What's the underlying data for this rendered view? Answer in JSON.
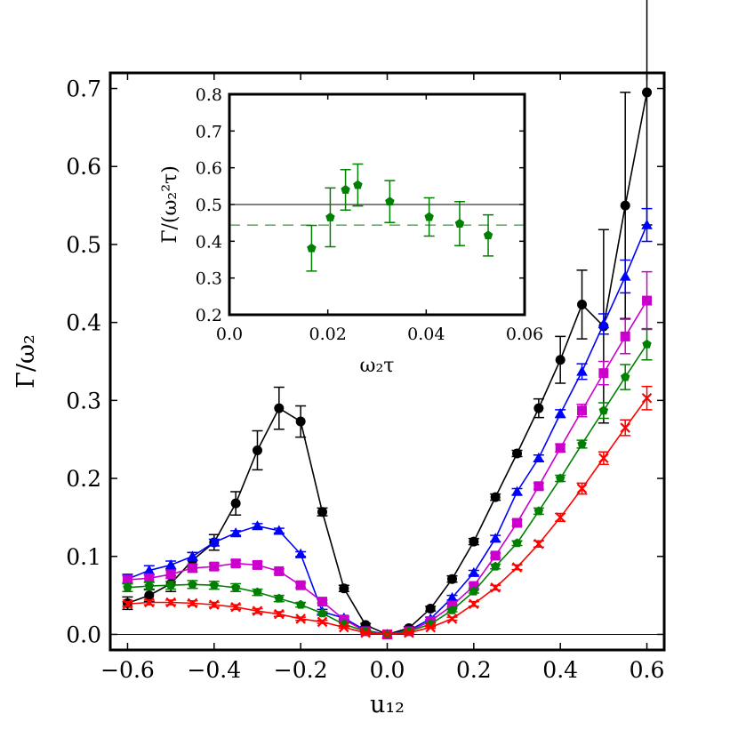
{
  "chart_data": [
    {
      "type": "line",
      "xlabel": "u₁₂",
      "ylabel": "Γ/ω₂",
      "xlim": [
        -0.64,
        0.64
      ],
      "ylim": [
        -0.02,
        0.72
      ],
      "xticks": [
        -0.6,
        -0.4,
        -0.2,
        0.0,
        0.2,
        0.4,
        0.6
      ],
      "xtick_labels": [
        "−0.6",
        "−0.4",
        "−0.2",
        "0.0",
        "0.2",
        "0.4",
        "0.6"
      ],
      "yticks": [
        0.0,
        0.1,
        0.2,
        0.3,
        0.4,
        0.5,
        0.6,
        0.7
      ],
      "ytick_labels": [
        "0.0",
        "0.1",
        "0.2",
        "0.3",
        "0.4",
        "0.5",
        "0.6",
        "0.7"
      ],
      "reference_lines": [
        {
          "y": 0.0,
          "color": "#000000",
          "style": "solid"
        }
      ],
      "x": [
        -0.6,
        -0.55,
        -0.5,
        -0.45,
        -0.4,
        -0.35,
        -0.3,
        -0.25,
        -0.2,
        -0.15,
        -0.1,
        -0.05,
        0.0,
        0.05,
        0.1,
        0.15,
        0.2,
        0.25,
        0.3,
        0.35,
        0.4,
        0.45,
        0.5,
        0.55,
        0.6
      ],
      "series": [
        {
          "color": "#000000",
          "marker": "circle",
          "values": [
            0.04,
            0.05,
            0.065,
            0.095,
            0.118,
            0.168,
            0.236,
            0.29,
            0.273,
            0.157,
            0.059,
            0.012,
            0.0,
            0.008,
            0.033,
            0.071,
            0.119,
            0.176,
            0.232,
            0.29,
            0.352,
            0.423,
            0.395,
            0.55,
            0.695
          ],
          "errors": [
            0.008,
            0.008,
            0.01,
            0.01,
            0.01,
            0.015,
            0.025,
            0.027,
            0.02,
            0.005,
            0.004,
            0.002,
            0.0,
            0.002,
            0.003,
            0.004,
            0.004,
            0.004,
            0.004,
            0.012,
            0.03,
            0.044,
            0.124,
            0.145,
            0.17
          ]
        },
        {
          "color": "#0000ff",
          "marker": "triangle",
          "values": [
            0.071,
            0.082,
            0.089,
            0.1,
            0.118,
            0.13,
            0.139,
            0.133,
            0.103,
            0.029,
            0.021,
            0.005,
            0.0,
            0.005,
            0.02,
            0.047,
            0.079,
            0.123,
            0.183,
            0.226,
            0.283,
            0.337,
            0.398,
            0.459,
            0.525
          ],
          "errors": [
            0.006,
            0.006,
            0.005,
            0.005,
            0.004,
            0.003,
            0.003,
            0.003,
            0.003,
            0.003,
            0.002,
            0.001,
            0.0,
            0.001,
            0.002,
            0.003,
            0.003,
            0.004,
            0.004,
            0.004,
            0.005,
            0.01,
            0.013,
            0.021,
            0.021
          ]
        },
        {
          "color": "#cc00cc",
          "marker": "square",
          "values": [
            0.07,
            0.072,
            0.077,
            0.085,
            0.087,
            0.091,
            0.089,
            0.081,
            0.063,
            0.042,
            0.019,
            0.004,
            0.0,
            0.004,
            0.017,
            0.037,
            0.062,
            0.101,
            0.143,
            0.19,
            0.239,
            0.287,
            0.335,
            0.382,
            0.428
          ],
          "errors": [
            0.005,
            0.005,
            0.005,
            0.005,
            0.004,
            0.004,
            0.004,
            0.003,
            0.003,
            0.002,
            0.002,
            0.001,
            0.0,
            0.001,
            0.002,
            0.002,
            0.003,
            0.003,
            0.004,
            0.004,
            0.005,
            0.008,
            0.015,
            0.022,
            0.037
          ]
        },
        {
          "color": "#008000",
          "marker": "pentagon",
          "values": [
            0.06,
            0.062,
            0.063,
            0.064,
            0.063,
            0.06,
            0.054,
            0.046,
            0.038,
            0.027,
            0.013,
            0.004,
            0.0,
            0.004,
            0.013,
            0.031,
            0.055,
            0.087,
            0.117,
            0.158,
            0.2,
            0.244,
            0.287,
            0.33,
            0.372
          ],
          "errors": [
            0.005,
            0.005,
            0.005,
            0.005,
            0.005,
            0.005,
            0.004,
            0.004,
            0.003,
            0.002,
            0.002,
            0.001,
            0.0,
            0.001,
            0.002,
            0.002,
            0.002,
            0.003,
            0.003,
            0.004,
            0.004,
            0.005,
            0.01,
            0.016,
            0.02
          ]
        },
        {
          "color": "#ff0000",
          "marker": "x",
          "values": [
            0.039,
            0.041,
            0.041,
            0.04,
            0.038,
            0.035,
            0.03,
            0.026,
            0.02,
            0.016,
            0.009,
            0.002,
            0.0,
            0.002,
            0.009,
            0.02,
            0.039,
            0.06,
            0.086,
            0.116,
            0.15,
            0.187,
            0.226,
            0.265,
            0.303
          ],
          "errors": [
            0.003,
            0.003,
            0.003,
            0.003,
            0.003,
            0.003,
            0.003,
            0.003,
            0.002,
            0.002,
            0.001,
            0.001,
            0.0,
            0.001,
            0.001,
            0.002,
            0.003,
            0.003,
            0.003,
            0.004,
            0.005,
            0.007,
            0.008,
            0.01,
            0.015
          ]
        }
      ]
    },
    {
      "type": "scatter",
      "xlabel": "ω₂τ",
      "ylabel": "Γ/(ω₂²τ)",
      "xlim": [
        0.0,
        0.06
      ],
      "ylim": [
        0.2,
        0.8
      ],
      "xticks": [
        0.0,
        0.02,
        0.04,
        0.06
      ],
      "xtick_labels": [
        "0.0",
        "0.02",
        "0.04",
        "0.06"
      ],
      "yticks": [
        0.2,
        0.3,
        0.4,
        0.5,
        0.6,
        0.7,
        0.8
      ],
      "ytick_labels": [
        "0.2",
        "0.3",
        "0.4",
        "0.5",
        "0.6",
        "0.7",
        "0.8"
      ],
      "reference_lines": [
        {
          "y": 0.5,
          "color": "#000000",
          "style": "solid"
        },
        {
          "y": 0.444,
          "color": "#008000",
          "style": "dashed"
        }
      ],
      "series": [
        {
          "color": "#008000",
          "marker": "pentagon",
          "x": [
            0.0167,
            0.0205,
            0.0236,
            0.0261,
            0.0326,
            0.0406,
            0.0468,
            0.0526
          ],
          "values": [
            0.381,
            0.465,
            0.54,
            0.553,
            0.508,
            0.466,
            0.448,
            0.416
          ],
          "errors": [
            0.062,
            0.08,
            0.055,
            0.057,
            0.057,
            0.052,
            0.06,
            0.056
          ]
        }
      ]
    }
  ]
}
